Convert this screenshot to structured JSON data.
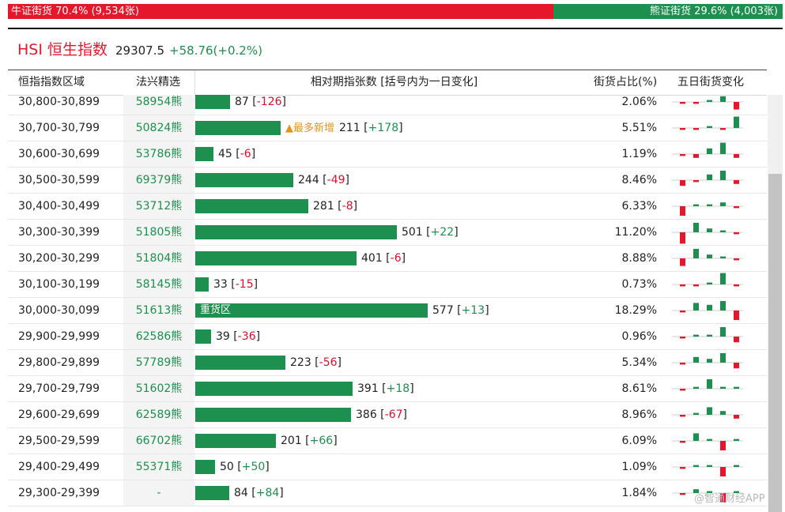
{
  "summary": {
    "bull_label": "牛证街货 70.4% (9,534张)",
    "bull_share": 0.704,
    "bear_label": "熊证街货 29.6% (4,003张)",
    "bear_share": 0.296
  },
  "index": {
    "name": "HSI 恒生指数",
    "price": "29307.5",
    "change": "+58.76(+0.2%)"
  },
  "columns": {
    "range": "恒指指数区域",
    "code": "法兴精选",
    "bar": "相对期指张数 [括号内为一日变化]",
    "pct": "街货占比(%)",
    "five": "五日街货变化"
  },
  "rows": [
    {
      "range": "30,800-30,899",
      "code": "58954熊",
      "count": 87,
      "count_text": "87",
      "change": "-126",
      "pct": "2.06%",
      "five": [
        -1,
        -1,
        1,
        3,
        -4
      ]
    },
    {
      "range": "30,700-30,799",
      "code": "50824熊",
      "count": 211,
      "count_text": "211",
      "change": "+178",
      "pct": "5.51%",
      "tag": "▲最多新增",
      "five": [
        -1,
        -1,
        1,
        -1,
        6
      ]
    },
    {
      "range": "30,600-30,699",
      "code": "53786熊",
      "count": 45,
      "count_text": "45",
      "change": "-6",
      "pct": "1.19%",
      "five": [
        -1,
        -2,
        3,
        6,
        -2
      ]
    },
    {
      "range": "30,500-30,599",
      "code": "69379熊",
      "count": 244,
      "count_text": "244",
      "change": "-49",
      "pct": "8.46%",
      "five": [
        -3,
        -1,
        3,
        5,
        -2
      ]
    },
    {
      "range": "30,400-30,499",
      "code": "53712熊",
      "count": 281,
      "count_text": "281",
      "change": "-8",
      "pct": "6.33%",
      "five": [
        -5,
        1,
        1,
        2,
        -1
      ]
    },
    {
      "range": "30,300-30,399",
      "code": "51805熊",
      "count": 501,
      "count_text": "501",
      "change": "+22",
      "pct": "11.20%",
      "five": [
        -6,
        5,
        2,
        1,
        -1
      ]
    },
    {
      "range": "30,200-30,299",
      "code": "51804熊",
      "count": 401,
      "count_text": "401",
      "change": "-6",
      "pct": "8.88%",
      "five": [
        -4,
        5,
        2,
        1,
        -1
      ]
    },
    {
      "range": "30,100-30,199",
      "code": "58145熊",
      "count": 33,
      "count_text": "33",
      "change": "-15",
      "pct": "0.73%",
      "five": [
        -1,
        -1,
        1,
        6,
        -1
      ]
    },
    {
      "range": "30,000-30,099",
      "code": "51613熊",
      "count": 577,
      "count_text": "577",
      "change": "+13",
      "pct": "18.29%",
      "inbar": "重货区",
      "five": [
        -1,
        4,
        3,
        5,
        -5
      ]
    },
    {
      "range": "29,900-29,999",
      "code": "62586熊",
      "count": 39,
      "count_text": "39",
      "change": "-36",
      "pct": "0.96%",
      "five": [
        -1,
        1,
        1,
        5,
        -3
      ]
    },
    {
      "range": "29,800-29,899",
      "code": "57789熊",
      "count": 223,
      "count_text": "223",
      "change": "-56",
      "pct": "5.34%",
      "five": [
        -1,
        3,
        2,
        5,
        -3
      ]
    },
    {
      "range": "29,700-29,799",
      "code": "51602熊",
      "count": 391,
      "count_text": "391",
      "change": "+18",
      "pct": "8.61%",
      "five": [
        -1,
        1,
        5,
        1,
        1
      ]
    },
    {
      "range": "29,600-29,699",
      "code": "62589熊",
      "count": 386,
      "count_text": "386",
      "change": "-67",
      "pct": "8.96%",
      "five": [
        -1,
        1,
        4,
        2,
        -2
      ]
    },
    {
      "range": "29,500-29,599",
      "code": "66702熊",
      "count": 201,
      "count_text": "201",
      "change": "+66",
      "pct": "6.09%",
      "five": [
        -1,
        4,
        1,
        -5,
        1
      ]
    },
    {
      "range": "29,400-29,499",
      "code": "55371熊",
      "count": 50,
      "count_text": "50",
      "change": "+50",
      "pct": "1.09%",
      "five": [
        -1,
        1,
        1,
        -5,
        1
      ]
    },
    {
      "range": "29,300-29,399",
      "code": "-",
      "count": 84,
      "count_text": "84",
      "change": "+84",
      "pct": "1.84%",
      "five": [
        -1,
        2,
        1,
        -5,
        1
      ]
    }
  ],
  "watermark": "@智通财经APP",
  "colors": {
    "up": "#1d8f4e",
    "down": "#e4172b"
  }
}
